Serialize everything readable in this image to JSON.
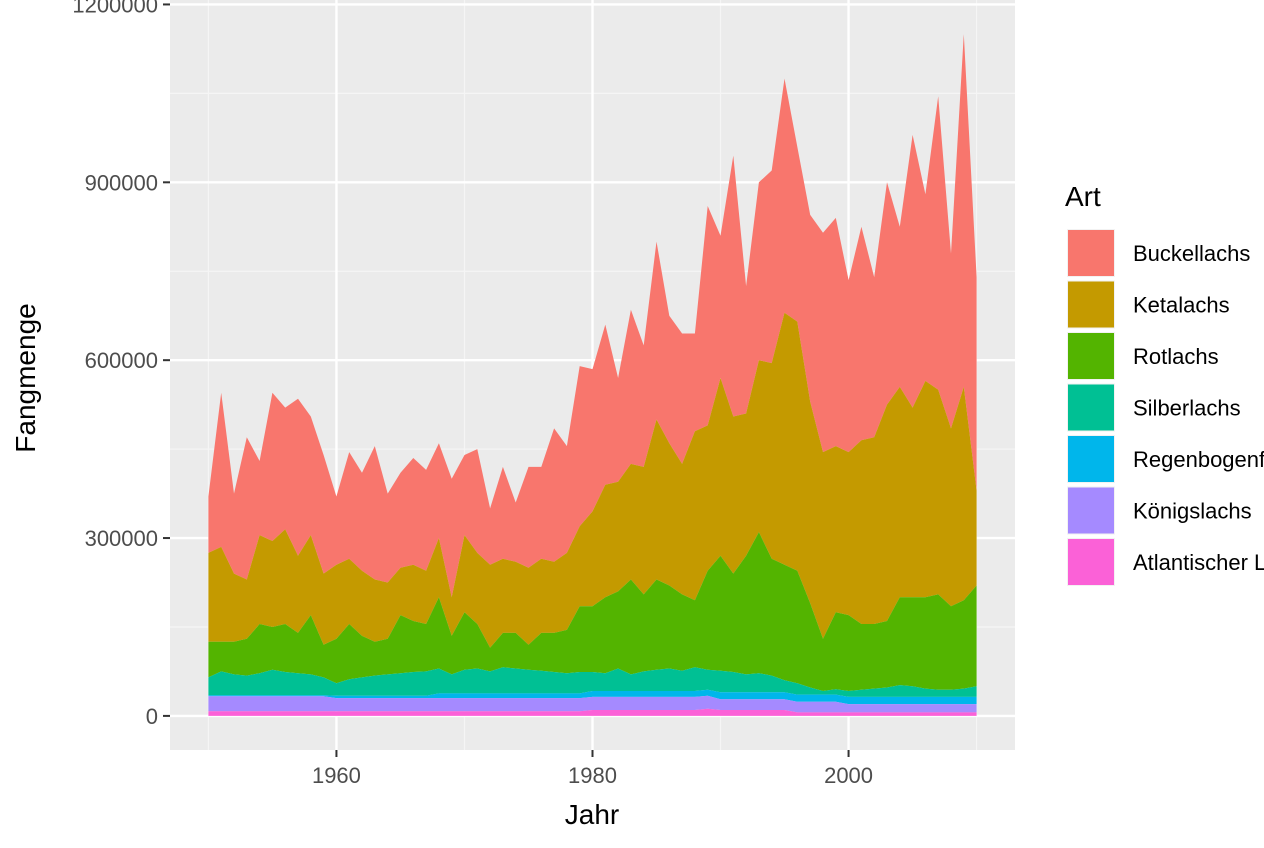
{
  "chart_data": {
    "type": "area",
    "stacked": true,
    "xlabel": "Jahr",
    "ylabel": "Fangmenge",
    "xlim": [
      1947,
      2013
    ],
    "ylim": [
      -57500,
      1207500
    ],
    "x_ticks": [
      1960,
      1980,
      2000
    ],
    "y_ticks": [
      0,
      300000,
      600000,
      900000,
      1200000
    ],
    "y_tick_labels": [
      "0",
      "300000",
      "600000",
      "900000",
      "1200000"
    ],
    "x_tick_labels": [
      "1960",
      "1980",
      "2000"
    ],
    "grid": true,
    "legend": {
      "title": "Art",
      "position": "right"
    },
    "x": [
      1950,
      1951,
      1952,
      1953,
      1954,
      1955,
      1956,
      1957,
      1958,
      1959,
      1960,
      1961,
      1962,
      1963,
      1964,
      1965,
      1966,
      1967,
      1968,
      1969,
      1970,
      1971,
      1972,
      1973,
      1974,
      1975,
      1976,
      1977,
      1978,
      1979,
      1980,
      1981,
      1982,
      1983,
      1984,
      1985,
      1986,
      1987,
      1988,
      1989,
      1990,
      1991,
      1992,
      1993,
      1994,
      1995,
      1996,
      1997,
      1998,
      1999,
      2000,
      2001,
      2002,
      2003,
      2004,
      2005,
      2006,
      2007,
      2008,
      2009,
      2010
    ],
    "series": [
      {
        "name": "Buckellachs",
        "color": "#F8766D",
        "values": [
          95000,
          260000,
          135000,
          240000,
          125000,
          250000,
          205000,
          265000,
          200000,
          200000,
          115000,
          180000,
          165000,
          225000,
          150000,
          160000,
          180000,
          170000,
          160000,
          200000,
          135000,
          175000,
          95000,
          155000,
          100000,
          170000,
          155000,
          225000,
          180000,
          270000,
          240000,
          270000,
          175000,
          260000,
          205000,
          300000,
          215000,
          220000,
          165000,
          370000,
          240000,
          440000,
          215000,
          300000,
          325000,
          395000,
          295000,
          315000,
          370000,
          385000,
          290000,
          360000,
          270000,
          375000,
          270000,
          460000,
          315000,
          495000,
          295000,
          595000,
          360000
        ]
      },
      {
        "name": "Ketalachs",
        "color": "#C49A00",
        "values": [
          150000,
          160000,
          115000,
          100000,
          150000,
          145000,
          160000,
          130000,
          135000,
          120000,
          125000,
          110000,
          110000,
          105000,
          95000,
          80000,
          95000,
          90000,
          100000,
          65000,
          130000,
          120000,
          140000,
          125000,
          120000,
          130000,
          125000,
          120000,
          130000,
          135000,
          160000,
          190000,
          185000,
          195000,
          215000,
          270000,
          240000,
          220000,
          285000,
          245000,
          300000,
          265000,
          240000,
          290000,
          330000,
          425000,
          420000,
          340000,
          315000,
          280000,
          275000,
          310000,
          315000,
          365000,
          355000,
          320000,
          365000,
          345000,
          300000,
          360000,
          160000
        ]
      },
      {
        "name": "Rotlachs",
        "color": "#53B400",
        "values": [
          60000,
          50000,
          55000,
          62000,
          83000,
          72000,
          81000,
          68000,
          100000,
          55000,
          75000,
          93000,
          70000,
          57000,
          60000,
          98000,
          86000,
          80000,
          120000,
          65000,
          97000,
          75000,
          40000,
          58000,
          60000,
          42000,
          64000,
          66000,
          73000,
          111000,
          111000,
          128000,
          130000,
          160000,
          130000,
          152000,
          140000,
          129000,
          113000,
          167000,
          194000,
          166000,
          200000,
          238000,
          197000,
          195000,
          190000,
          142000,
          88000,
          130000,
          128000,
          111000,
          109000,
          112000,
          148000,
          150000,
          154000,
          161000,
          141000,
          149000,
          170000
        ]
      },
      {
        "name": "Silberlachs",
        "color": "#00C094",
        "values": [
          30000,
          40000,
          35000,
          33000,
          37000,
          43000,
          39000,
          37000,
          35000,
          30000,
          21000,
          28000,
          31000,
          34000,
          36000,
          38000,
          40000,
          41000,
          42000,
          32000,
          40000,
          42000,
          37000,
          44000,
          42000,
          40000,
          38000,
          36000,
          34000,
          36000,
          32000,
          30000,
          38000,
          28000,
          33000,
          36000,
          38000,
          34000,
          40000,
          34000,
          36000,
          34000,
          30000,
          32000,
          28000,
          20000,
          19000,
          12000,
          6000,
          9000,
          10000,
          12000,
          14000,
          16000,
          20000,
          18000,
          14000,
          12000,
          12000,
          14000,
          18000
        ]
      },
      {
        "name": "Regenbogenforelle",
        "color": "#00B6EB",
        "values": [
          2000,
          2000,
          2000,
          2000,
          2000,
          2000,
          2000,
          2000,
          2000,
          2000,
          4000,
          4000,
          4000,
          4000,
          4000,
          4000,
          4000,
          4000,
          8000,
          8000,
          8000,
          8000,
          8000,
          8000,
          8000,
          8000,
          8000,
          8000,
          8000,
          8000,
          10000,
          10000,
          10000,
          10000,
          10000,
          10000,
          10000,
          10000,
          10000,
          10000,
          12000,
          12000,
          12000,
          12000,
          12000,
          12000,
          12000,
          12000,
          12000,
          12000,
          12000,
          12000,
          12000,
          12000,
          12000,
          12000,
          12000,
          12000,
          12000,
          12000,
          12000
        ]
      },
      {
        "name": "Königslachs",
        "color": "#A58AFF",
        "values": [
          25000,
          25000,
          25000,
          25000,
          25000,
          25000,
          25000,
          25000,
          25000,
          25000,
          22000,
          22000,
          22000,
          22000,
          22000,
          22000,
          22000,
          22000,
          22000,
          22000,
          22000,
          22000,
          22000,
          22000,
          22000,
          22000,
          22000,
          22000,
          22000,
          22000,
          22000,
          22000,
          22000,
          22000,
          22000,
          22000,
          22000,
          22000,
          22000,
          22000,
          18000,
          18000,
          18000,
          18000,
          18000,
          18000,
          18000,
          18000,
          18000,
          18000,
          14000,
          14000,
          14000,
          14000,
          14000,
          14000,
          14000,
          14000,
          14000,
          14000,
          14000
        ]
      },
      {
        "name": "Atlantischer Lachs",
        "color": "#FB61D7",
        "values": [
          8000,
          8000,
          8000,
          8000,
          8000,
          8000,
          8000,
          8000,
          8000,
          8000,
          8000,
          8000,
          8000,
          8000,
          8000,
          8000,
          8000,
          8000,
          8000,
          8000,
          8000,
          8000,
          8000,
          8000,
          8000,
          8000,
          8000,
          8000,
          8000,
          8000,
          10000,
          10000,
          10000,
          10000,
          10000,
          10000,
          10000,
          10000,
          10000,
          12000,
          10000,
          10000,
          10000,
          10000,
          10000,
          10000,
          6000,
          6000,
          6000,
          6000,
          6000,
          6000,
          6000,
          6000,
          6000,
          6000,
          6000,
          6000,
          6000,
          6000,
          6000
        ]
      }
    ],
    "colors": {
      "panel": "#EBEBEB",
      "grid": "#FFFFFF",
      "text": "#4D4D4D",
      "title": "#000000"
    }
  }
}
